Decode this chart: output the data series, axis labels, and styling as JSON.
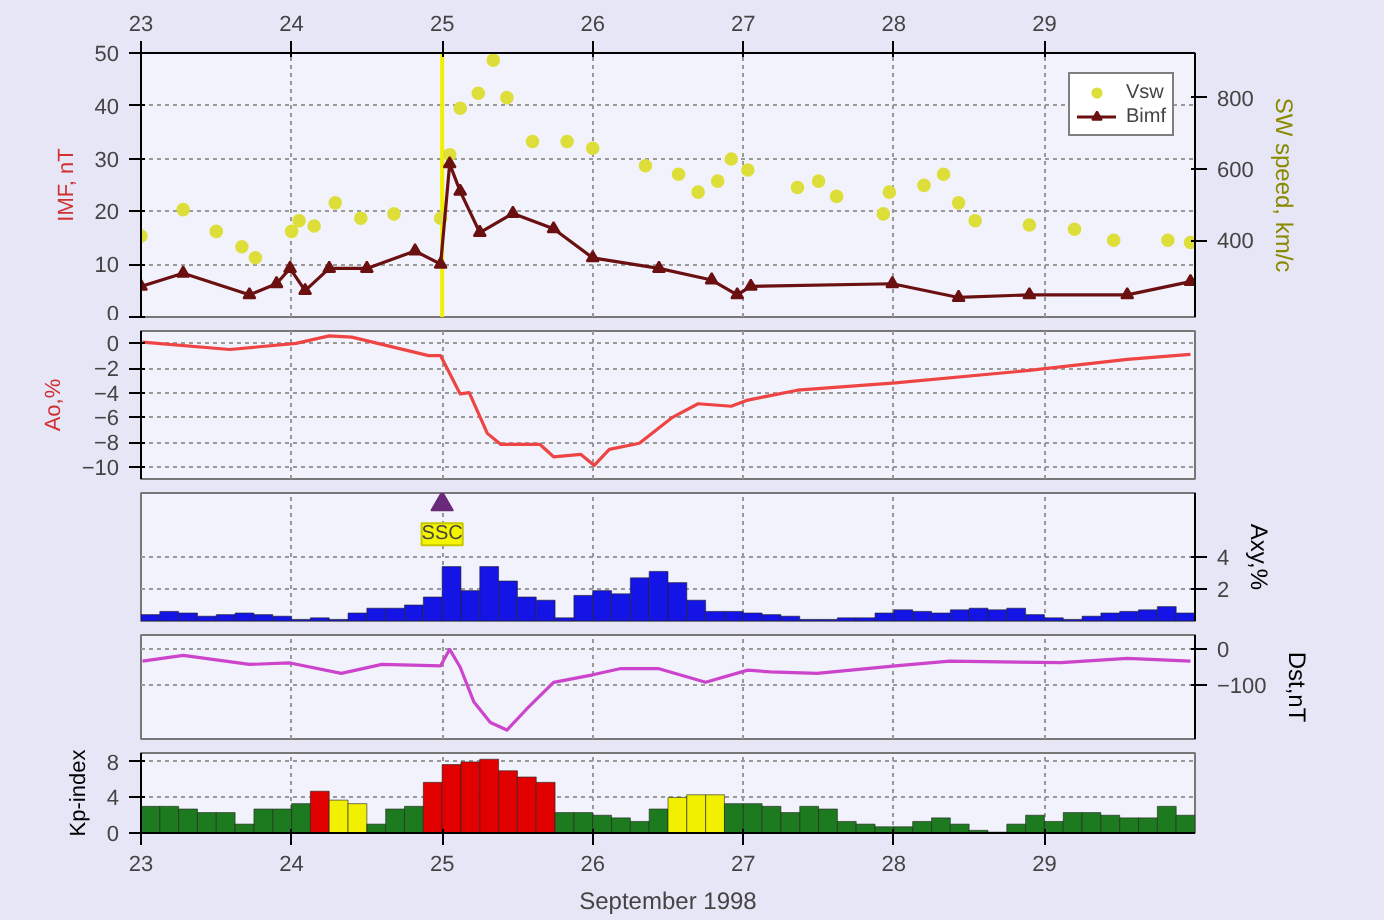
{
  "chart_data": [
    {
      "type": "scatter",
      "xlim": [
        23,
        30
      ],
      "xticks": [
        23,
        24,
        25,
        26,
        27,
        28,
        29
      ],
      "ylim": [
        0,
        50
      ],
      "yticks": [
        0,
        10,
        20,
        30,
        40,
        50
      ],
      "y2lim": [
        185,
        925
      ],
      "y2ticks": [
        400,
        600,
        800
      ],
      "ylabel": "IMF, nT",
      "y2label": "SW speed, km/c",
      "grid": true,
      "legend": "top right",
      "ref_lines": [
        {
          "axis": "x",
          "value": 25,
          "color": "#f0f000"
        }
      ],
      "series": [
        {
          "name": "Vsw",
          "color": "#dede3a",
          "marker": "circle",
          "axis": "y2",
          "x": [
            23.0,
            23.28,
            23.5,
            23.67,
            23.76,
            24.0,
            24.05,
            24.15,
            24.29,
            24.46,
            24.68,
            24.99,
            25.05,
            25.12,
            25.24,
            25.34,
            25.43,
            25.6,
            25.83,
            26.0,
            26.35,
            26.57,
            26.7,
            26.83,
            26.92,
            27.03,
            27.36,
            27.5,
            27.62,
            27.93,
            27.97,
            28.2,
            28.33,
            28.43,
            28.54,
            28.9,
            29.2,
            29.46,
            29.82,
            29.97
          ],
          "values": [
            412,
            486,
            425,
            382,
            351,
            425,
            455,
            440,
            505,
            462,
            474,
            462,
            640,
            770,
            812,
            905,
            800,
            677,
            677,
            658,
            609,
            585,
            535,
            566,
            628,
            597,
            548,
            566,
            523,
            474,
            535,
            554,
            585,
            505,
            455,
            443,
            431,
            400,
            400,
            394
          ]
        },
        {
          "name": "Bimf",
          "color": "#6b1010",
          "marker": "triangle",
          "type": "line",
          "x": [
            23.0,
            23.28,
            23.72,
            23.9,
            23.99,
            24.09,
            24.25,
            24.5,
            24.82,
            24.99,
            25.05,
            25.12,
            25.25,
            25.47,
            25.74,
            26.0,
            26.44,
            26.79,
            26.96,
            27.05,
            27.99,
            28.43,
            28.9,
            29.55,
            29.97
          ],
          "values": [
            5.8,
            8.3,
            4.2,
            6.3,
            9.2,
            5,
            9.2,
            9.2,
            12.5,
            10,
            29,
            23.8,
            16,
            19.6,
            16.7,
            11.2,
            9.2,
            7,
            4.2,
            5.8,
            6.3,
            3.7,
            4.2,
            4.2,
            6.7
          ]
        }
      ]
    },
    {
      "type": "line",
      "xlim": [
        23,
        30
      ],
      "xticks": [
        23,
        24,
        25,
        26,
        27,
        28,
        29
      ],
      "ylim": [
        -11,
        1
      ],
      "yticks": [
        0,
        -2,
        -4,
        -6,
        -8,
        -10
      ],
      "ylabel": "Ao,%",
      "grid": true,
      "tick_labels": "y",
      "series": [
        {
          "color": "#ee4444",
          "x": [
            23.01,
            23.59,
            24.03,
            24.25,
            24.4,
            24.91,
            24.99,
            25.12,
            25.18,
            25.3,
            25.39,
            25.65,
            25.74,
            25.92,
            26.01,
            26.11,
            26.31,
            26.53,
            26.7,
            26.92,
            27.03,
            27.36,
            28.01,
            28.9,
            29.55,
            29.97
          ],
          "values": [
            0.1,
            -0.5,
            0,
            0.6,
            0.5,
            -1.0,
            -1.0,
            -4.1,
            -4.0,
            -7.3,
            -8.2,
            -8.2,
            -9.2,
            -9.0,
            -9.9,
            -8.6,
            -8.1,
            -6.0,
            -4.9,
            -5.1,
            -4.6,
            -3.8,
            -3.2,
            -2.2,
            -1.3,
            -0.9
          ]
        }
      ]
    },
    {
      "type": "bar",
      "xlim": [
        23,
        30
      ],
      "xticks": [
        23,
        24,
        25,
        26,
        27,
        28,
        29
      ],
      "ylim": [
        0,
        8
      ],
      "yticks": [
        2,
        4
      ],
      "y2label": "Axy,%",
      "grid": true,
      "tick_labels": "y",
      "annotations": [
        {
          "text": "SSC",
          "x": 25,
          "y": 7.3
        }
      ],
      "series": [
        {
          "type": "scatter",
          "color": "#6a2a7a",
          "marker": "triangle",
          "x": [
            25
          ],
          "values": [
            7.3
          ]
        },
        {
          "color": "#1414e6",
          "x": [
            23.0625,
            23.1875,
            23.3125,
            23.4375,
            23.5625,
            23.6875,
            23.8125,
            23.9375,
            24.0625,
            24.1875,
            24.3125,
            24.4375,
            24.5625,
            24.6875,
            24.8125,
            24.9375,
            25.0625,
            25.1875,
            25.3125,
            25.4375,
            25.5625,
            25.6875,
            25.8125,
            25.9375,
            26.0625,
            26.1875,
            26.3125,
            26.4375,
            26.5625,
            26.6875,
            26.8125,
            26.9375,
            27.0625,
            27.1875,
            27.3125,
            27.4375,
            27.5625,
            27.6875,
            27.8125,
            27.9375,
            28.0625,
            28.1875,
            28.3125,
            28.4375,
            28.5625,
            28.6875,
            28.8125,
            28.9375,
            29.0625,
            29.1875,
            29.3125,
            29.4375,
            29.5625,
            29.6875,
            29.8125,
            29.9375
          ],
          "values": [
            0.4,
            0.6,
            0.5,
            0.3,
            0.4,
            0.5,
            0.4,
            0.3,
            0.1,
            0.2,
            0.1,
            0.5,
            0.8,
            0.8,
            1.0,
            1.5,
            3.4,
            1.9,
            3.4,
            2.5,
            1.5,
            1.3,
            0.2,
            1.6,
            1.9,
            1.7,
            2.7,
            3.1,
            2.4,
            1.3,
            0.6,
            0.6,
            0.5,
            0.4,
            0.3,
            0.1,
            0.1,
            0.2,
            0.2,
            0.5,
            0.7,
            0.6,
            0.5,
            0.7,
            0.8,
            0.7,
            0.8,
            0.4,
            0.2,
            0.1,
            0.3,
            0.5,
            0.6,
            0.7,
            0.9,
            0.5
          ]
        }
      ]
    },
    {
      "type": "line",
      "xlim": [
        23,
        30
      ],
      "xticks": [
        23,
        24,
        25,
        26,
        27,
        28,
        29
      ],
      "ylim": [
        -250,
        40
      ],
      "yticks": [
        0,
        -100
      ],
      "y2label": "Dst,nT",
      "grid": true,
      "tick_labels": "y",
      "series": [
        {
          "color": "#cc44cc",
          "x": [
            23.01,
            23.28,
            23.72,
            23.99,
            24.33,
            24.6,
            24.99,
            25.05,
            25.12,
            25.21,
            25.32,
            25.43,
            25.56,
            25.74,
            26.0,
            26.18,
            26.44,
            26.75,
            27.03,
            27.18,
            27.49,
            28.01,
            28.37,
            29.11,
            29.55,
            29.97
          ],
          "values": [
            -33,
            -17,
            -42,
            -38,
            -67,
            -42,
            -46,
            0,
            -50,
            -146,
            -204,
            -225,
            -167,
            -92,
            -71,
            -54,
            -54,
            -92,
            -58,
            -63,
            -67,
            -46,
            -33,
            -37,
            -25,
            -33
          ]
        }
      ]
    },
    {
      "type": "bar",
      "xlim": [
        23,
        30
      ],
      "xticks": [
        23,
        24,
        25,
        26,
        27,
        28,
        29
      ],
      "ylim": [
        0,
        9
      ],
      "yticks": [
        0,
        4,
        8
      ],
      "xlabel": "September 1998",
      "ylabel": "Kp-index",
      "grid": true,
      "series": [
        {
          "x": [
            23.0625,
            23.1875,
            23.3125,
            23.4375,
            23.5625,
            23.6875,
            23.8125,
            23.9375,
            24.0625,
            24.1875,
            24.3125,
            24.4375,
            24.5625,
            24.6875,
            24.8125,
            24.9375,
            25.0625,
            25.1875,
            25.3125,
            25.4375,
            25.5625,
            25.6875,
            25.8125,
            25.9375,
            26.0625,
            26.1875,
            26.3125,
            26.4375,
            26.5625,
            26.6875,
            26.8125,
            26.9375,
            27.0625,
            27.1875,
            27.3125,
            27.4375,
            27.5625,
            27.6875,
            27.8125,
            27.9375,
            28.0625,
            28.1875,
            28.3125,
            28.4375,
            28.5625,
            28.6875,
            28.8125,
            28.9375,
            29.0625,
            29.1875,
            29.3125,
            29.4375,
            29.5625,
            29.6875,
            29.8125,
            29.9375
          ],
          "values": [
            3,
            3,
            2.7,
            2.3,
            2.3,
            1,
            2.7,
            2.7,
            3.3,
            4.7,
            3.7,
            3.3,
            1.0,
            2.7,
            3,
            5.7,
            7.7,
            8,
            8.3,
            7,
            6.3,
            5.7,
            2.3,
            2.3,
            2,
            1.7,
            1.3,
            2.7,
            4,
            4.3,
            4.3,
            3.3,
            3.3,
            3,
            2.3,
            3,
            2.7,
            1.3,
            1.0,
            0.7,
            0.7,
            1.3,
            1.7,
            1.0,
            0.3,
            0.1,
            1,
            2,
            1.3,
            2.3,
            2.3,
            2,
            1.7,
            1.7,
            3,
            2
          ],
          "colors": [
            "#1e7a1e",
            "#1e7a1e",
            "#1e7a1e",
            "#1e7a1e",
            "#1e7a1e",
            "#1e7a1e",
            "#1e7a1e",
            "#1e7a1e",
            "#1e7a1e",
            "#e00000",
            "#f0f000",
            "#f0f000",
            "#1e7a1e",
            "#1e7a1e",
            "#1e7a1e",
            "#e00000",
            "#e00000",
            "#e00000",
            "#e00000",
            "#e00000",
            "#e00000",
            "#e00000",
            "#1e7a1e",
            "#1e7a1e",
            "#1e7a1e",
            "#1e7a1e",
            "#1e7a1e",
            "#1e7a1e",
            "#f0f000",
            "#f0f000",
            "#f0f000",
            "#1e7a1e",
            "#1e7a1e",
            "#1e7a1e",
            "#1e7a1e",
            "#1e7a1e",
            "#1e7a1e",
            "#1e7a1e",
            "#1e7a1e",
            "#1e7a1e",
            "#1e7a1e",
            "#1e7a1e",
            "#1e7a1e",
            "#1e7a1e",
            "#1e7a1e",
            "#1e7a1e",
            "#1e7a1e",
            "#1e7a1e",
            "#1e7a1e",
            "#1e7a1e",
            "#1e7a1e",
            "#1e7a1e",
            "#1e7a1e",
            "#1e7a1e",
            "#1e7a1e",
            "#1e7a1e"
          ]
        }
      ]
    }
  ]
}
